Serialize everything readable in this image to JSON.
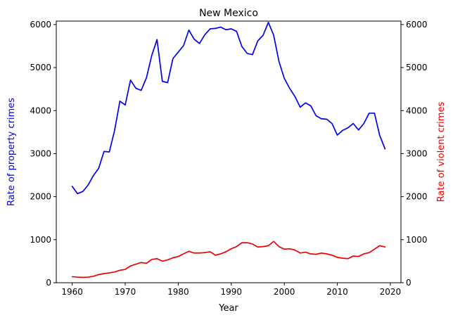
{
  "chart_data": {
    "type": "line",
    "title": "New Mexico",
    "xlabel": "Year",
    "ylabel_left": "Rate of property crimes",
    "ylabel_right": "Rate of violent crimes",
    "xlim": [
      1957,
      2022
    ],
    "ylim": [
      0,
      6080
    ],
    "xticks": [
      1960,
      1970,
      1980,
      1990,
      2000,
      2010,
      2020
    ],
    "yticks": [
      0,
      1000,
      2000,
      3000,
      4000,
      5000,
      6000
    ],
    "grid": false,
    "colors": {
      "property": "#0000ee",
      "violent": "#ee0000",
      "axis": "#000000"
    },
    "x": [
      1960,
      1961,
      1962,
      1963,
      1964,
      1965,
      1966,
      1967,
      1968,
      1969,
      1970,
      1971,
      1972,
      1973,
      1974,
      1975,
      1976,
      1977,
      1978,
      1979,
      1980,
      1981,
      1982,
      1983,
      1984,
      1985,
      1986,
      1987,
      1988,
      1989,
      1990,
      1991,
      1992,
      1993,
      1994,
      1995,
      1996,
      1997,
      1998,
      1999,
      2000,
      2001,
      2002,
      2003,
      2004,
      2005,
      2006,
      2007,
      2008,
      2009,
      2010,
      2011,
      2012,
      2013,
      2014,
      2015,
      2016,
      2017,
      2018,
      2019
    ],
    "series": [
      {
        "key": "property",
        "axis": "left",
        "values": [
          2240,
          2070,
          2120,
          2270,
          2490,
          2660,
          3050,
          3040,
          3540,
          4220,
          4130,
          4710,
          4520,
          4470,
          4760,
          5280,
          5650,
          4680,
          4650,
          5210,
          5360,
          5510,
          5870,
          5660,
          5560,
          5760,
          5900,
          5910,
          5940,
          5880,
          5900,
          5840,
          5490,
          5330,
          5300,
          5620,
          5750,
          6050,
          5750,
          5140,
          4750,
          4520,
          4330,
          4080,
          4180,
          4110,
          3880,
          3810,
          3800,
          3700,
          3430,
          3540,
          3600,
          3700,
          3550,
          3700,
          3940,
          3940,
          3420,
          3110
        ]
      },
      {
        "key": "violent",
        "axis": "right",
        "values": [
          140,
          130,
          125,
          130,
          150,
          190,
          210,
          230,
          250,
          290,
          310,
          390,
          430,
          470,
          450,
          540,
          560,
          500,
          530,
          580,
          610,
          670,
          730,
          690,
          690,
          700,
          720,
          640,
          670,
          720,
          790,
          840,
          930,
          930,
          900,
          830,
          840,
          860,
          960,
          840,
          780,
          790,
          760,
          690,
          710,
          670,
          660,
          690,
          670,
          640,
          590,
          570,
          560,
          620,
          610,
          670,
          700,
          780,
          860,
          830
        ]
      }
    ]
  }
}
